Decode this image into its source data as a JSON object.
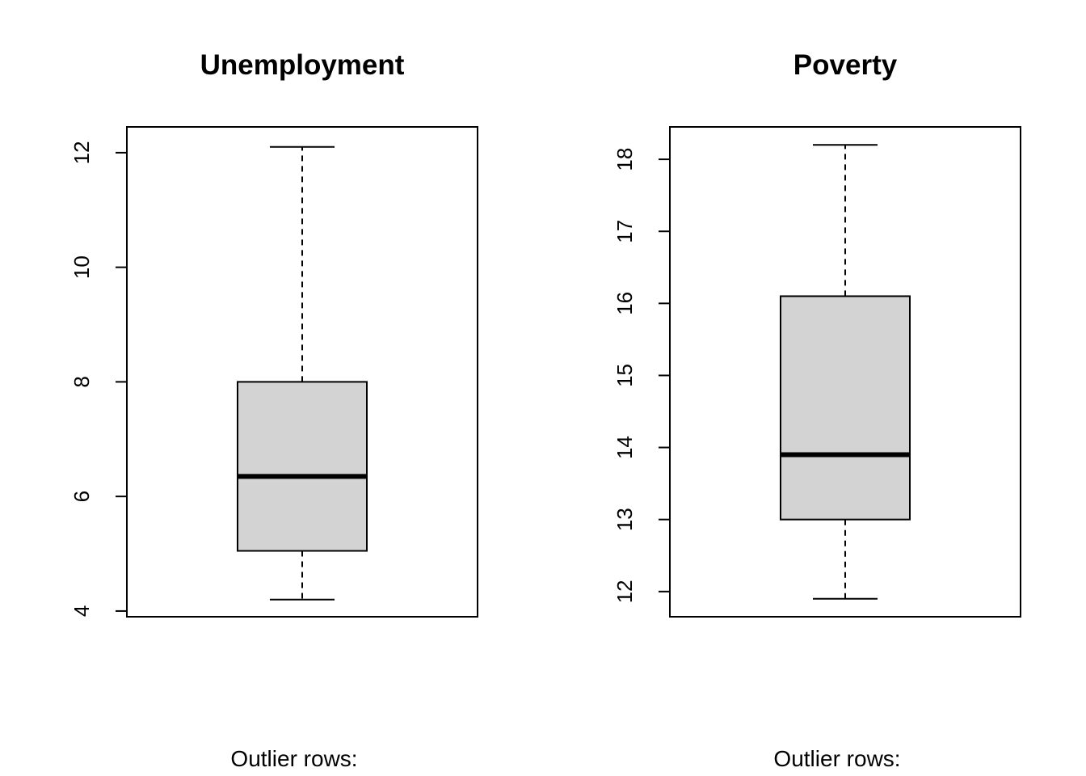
{
  "chart_data": [
    {
      "type": "boxplot",
      "title": "Unemployment",
      "ylim": [
        3.9,
        12.45
      ],
      "yticks": [
        4,
        6,
        8,
        10,
        12
      ],
      "stats": {
        "min": 4.2,
        "q1": 5.05,
        "median": 6.35,
        "q3": 8.0,
        "max": 12.1
      },
      "box_color": "#d3d3d3",
      "caption": "Outlier rows:"
    },
    {
      "type": "boxplot",
      "title": "Poverty",
      "ylim": [
        11.65,
        18.45
      ],
      "yticks": [
        12,
        13,
        14,
        15,
        16,
        17,
        18
      ],
      "stats": {
        "min": 11.9,
        "q1": 13.0,
        "median": 13.9,
        "q3": 16.1,
        "max": 18.2
      },
      "box_color": "#d3d3d3",
      "caption": "Outlier rows:"
    }
  ]
}
